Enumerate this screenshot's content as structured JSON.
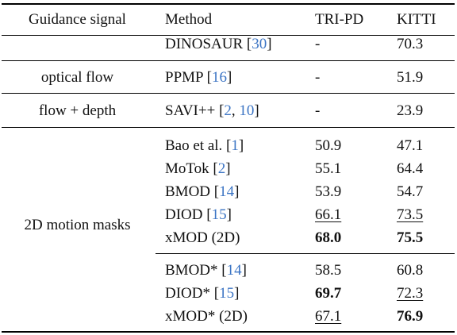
{
  "header": {
    "col0": "Guidance signal",
    "col1": "Method",
    "col2": "TRI-PD",
    "col3": "KITTI"
  },
  "groups": [
    {
      "signal": "",
      "rows": [
        {
          "method": "DINOSAUR [",
          "cites": [
            "30"
          ],
          "tail": "]",
          "tri": "-",
          "kitti": "70.3"
        }
      ]
    },
    {
      "signal": "optical flow",
      "rows": [
        {
          "method": "PPMP [",
          "cites": [
            "16"
          ],
          "tail": "]",
          "tri": "-",
          "kitti": "51.9"
        }
      ]
    },
    {
      "signal": "flow + depth",
      "rows": [
        {
          "method": "SAVI++ [",
          "cites": [
            "2",
            "10"
          ],
          "tail": "]",
          "tri": "-",
          "kitti": "23.9"
        }
      ]
    },
    {
      "signal": "2D motion masks",
      "rows": [
        {
          "method": "Bao et al. [",
          "cites": [
            "1"
          ],
          "tail": "]",
          "tri": "50.9",
          "kitti": "47.1"
        },
        {
          "method": "MoTok [",
          "cites": [
            "2"
          ],
          "tail": "]",
          "tri": "55.1",
          "kitti": "64.4"
        },
        {
          "method": "BMOD [",
          "cites": [
            "14"
          ],
          "tail": "]",
          "tri": "53.9",
          "kitti": "54.7"
        },
        {
          "method": "DIOD [",
          "cites": [
            "15"
          ],
          "tail": "]",
          "tri": "66.1",
          "tri_style": "underline",
          "kitti": "73.5",
          "kitti_style": "underline"
        },
        {
          "method": "xMOD (2D)",
          "cites": [],
          "tail": "",
          "tri": "68.0",
          "tri_style": "bold",
          "kitti": "75.5",
          "kitti_style": "bold"
        },
        {
          "method": "BMOD* [",
          "cites": [
            "14"
          ],
          "tail": "]",
          "tri": "58.5",
          "kitti": "60.8"
        },
        {
          "method": "DIOD* [",
          "cites": [
            "15"
          ],
          "tail": "]",
          "tri": "69.7",
          "tri_style": "bold",
          "kitti": "72.3",
          "kitti_style": "underline"
        },
        {
          "method": "xMOD* (2D)",
          "cites": [],
          "tail": "",
          "tri": "67.1",
          "tri_style": "underline",
          "kitti": "76.9",
          "kitti_style": "bold"
        }
      ]
    }
  ]
}
